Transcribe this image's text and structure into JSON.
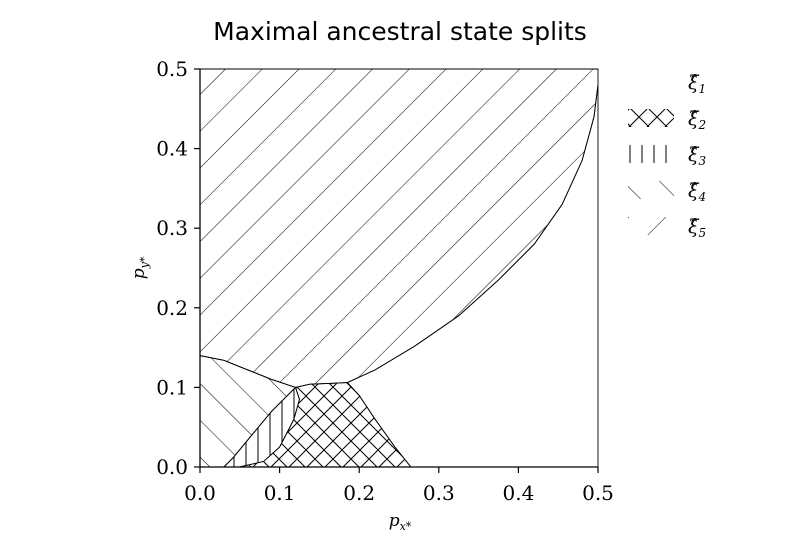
{
  "chart_data": {
    "type": "area",
    "title": "Maximal ancestral state splits",
    "xlabel": "p_{x^*}",
    "ylabel": "p_{y^*}",
    "xlabel_main": "p",
    "xlabel_sub": "x*",
    "ylabel_main": "p",
    "ylabel_sub": "y*",
    "xlim": [
      0,
      0.5
    ],
    "ylim": [
      0,
      0.5
    ],
    "xticks": [
      "0.0",
      "0.1",
      "0.2",
      "0.3",
      "0.4",
      "0.5"
    ],
    "yticks": [
      "0.0",
      "0.1",
      "0.2",
      "0.3",
      "0.4",
      "0.5"
    ],
    "grid": false,
    "legend_position": "right",
    "legend": [
      {
        "id": "xi1",
        "label": "ξ̂",
        "sub": "1",
        "hatch": "none"
      },
      {
        "id": "xi2",
        "label": "ξ̂",
        "sub": "2",
        "hatch": "cross"
      },
      {
        "id": "xi3",
        "label": "ξ̂",
        "sub": "3",
        "hatch": "vertical"
      },
      {
        "id": "xi4",
        "label": "ξ̂",
        "sub": "4",
        "hatch": "backslash"
      },
      {
        "id": "xi5",
        "label": "ξ̂",
        "sub": "5",
        "hatch": "forward"
      }
    ],
    "regions": [
      {
        "name": "xi5",
        "hatch": "forward",
        "boundary": [
          [
            0,
            0.5
          ],
          [
            0.5,
            0.5
          ],
          [
            0.5,
            0.48
          ],
          [
            0.495,
            0.44
          ],
          [
            0.48,
            0.385
          ],
          [
            0.455,
            0.33
          ],
          [
            0.42,
            0.28
          ],
          [
            0.375,
            0.235
          ],
          [
            0.325,
            0.19
          ],
          [
            0.27,
            0.152
          ],
          [
            0.22,
            0.122
          ],
          [
            0.185,
            0.106
          ],
          [
            0.162,
            0.105
          ],
          [
            0.138,
            0.104
          ],
          [
            0.12,
            0.1
          ],
          [
            0.09,
            0.11
          ],
          [
            0.06,
            0.122
          ],
          [
            0.03,
            0.134
          ],
          [
            0,
            0.14
          ]
        ]
      },
      {
        "name": "xi4",
        "hatch": "backslash",
        "boundary": [
          [
            0,
            0.14
          ],
          [
            0.03,
            0.134
          ],
          [
            0.06,
            0.122
          ],
          [
            0.09,
            0.11
          ],
          [
            0.12,
            0.1
          ],
          [
            0.09,
            0.07
          ],
          [
            0.065,
            0.04
          ],
          [
            0.042,
            0.012
          ],
          [
            0.03,
            0
          ],
          [
            0,
            0
          ]
        ]
      },
      {
        "name": "xi3",
        "hatch": "vertical",
        "boundary": [
          [
            0.03,
            0
          ],
          [
            0.042,
            0.012
          ],
          [
            0.065,
            0.04
          ],
          [
            0.09,
            0.07
          ],
          [
            0.12,
            0.1
          ],
          [
            0.125,
            0.085
          ],
          [
            0.118,
            0.06
          ],
          [
            0.1,
            0.025
          ],
          [
            0.08,
            0.007
          ],
          [
            0.05,
            0
          ]
        ]
      },
      {
        "name": "xi2",
        "hatch": "cross",
        "boundary": [
          [
            0.12,
            0.1
          ],
          [
            0.138,
            0.104
          ],
          [
            0.162,
            0.105
          ],
          [
            0.185,
            0.106
          ],
          [
            0.2,
            0.09
          ],
          [
            0.22,
            0.06
          ],
          [
            0.245,
            0.025
          ],
          [
            0.265,
            0
          ],
          [
            0.05,
            0
          ],
          [
            0.08,
            0.007
          ],
          [
            0.1,
            0.025
          ],
          [
            0.118,
            0.06
          ],
          [
            0.125,
            0.085
          ]
        ]
      },
      {
        "name": "xi1",
        "hatch": "none",
        "boundary": [
          [
            0.185,
            0.106
          ],
          [
            0.22,
            0.122
          ],
          [
            0.27,
            0.152
          ],
          [
            0.325,
            0.19
          ],
          [
            0.375,
            0.235
          ],
          [
            0.42,
            0.28
          ],
          [
            0.455,
            0.33
          ],
          [
            0.48,
            0.385
          ],
          [
            0.495,
            0.44
          ],
          [
            0.5,
            0.48
          ],
          [
            0.5,
            0
          ],
          [
            0.265,
            0
          ],
          [
            0.245,
            0.025
          ],
          [
            0.22,
            0.06
          ],
          [
            0.2,
            0.09
          ]
        ]
      }
    ]
  }
}
